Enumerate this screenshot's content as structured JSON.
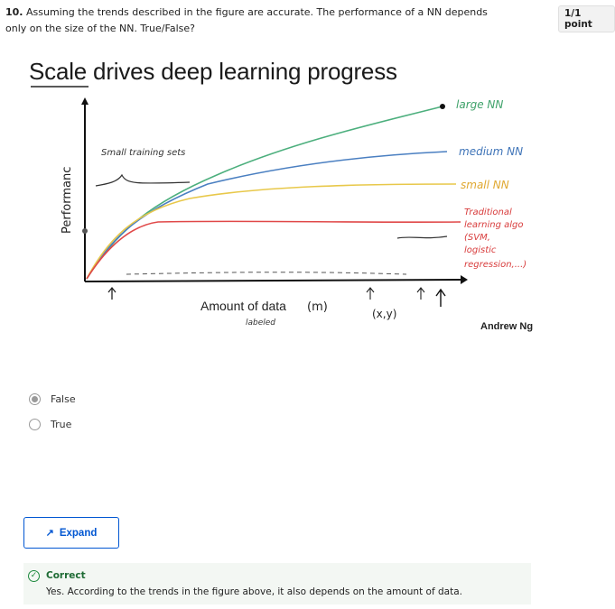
{
  "question": {
    "number": "10.",
    "text": "Assuming the trends described in the figure are accurate. The performance of a NN depends only on the size of the NN. True/False?",
    "points": "1/1 point"
  },
  "figure": {
    "title": "Scale drives deep learning progress",
    "ylabel": "Performanc",
    "xlabel": "Amount of data",
    "xlabel_var": "(m)",
    "xlabel_note": "labeled",
    "xy_note": "(x,y)",
    "small_sets_note": "Small training sets",
    "credit": "Andrew Ng",
    "series": [
      {
        "name": "large NN",
        "color": "#4caf7d"
      },
      {
        "name": "medium NN",
        "color": "#4a7fc1"
      },
      {
        "name": "small NN",
        "color": "#e8c84a"
      },
      {
        "name": "Traditional learning algo",
        "color": "#e04848"
      }
    ],
    "trad_note_1": "Traditional",
    "trad_note_2": "learning algo",
    "trad_note_3": "(SVM,",
    "trad_note_4": "logistic",
    "trad_note_5": "regression,...)"
  },
  "options": [
    {
      "label": "False",
      "selected": true
    },
    {
      "label": "True",
      "selected": false
    }
  ],
  "expand_label": "Expand",
  "feedback": {
    "title": "Correct",
    "text": "Yes. According to the trends in the figure above, it also depends on the amount of data."
  }
}
